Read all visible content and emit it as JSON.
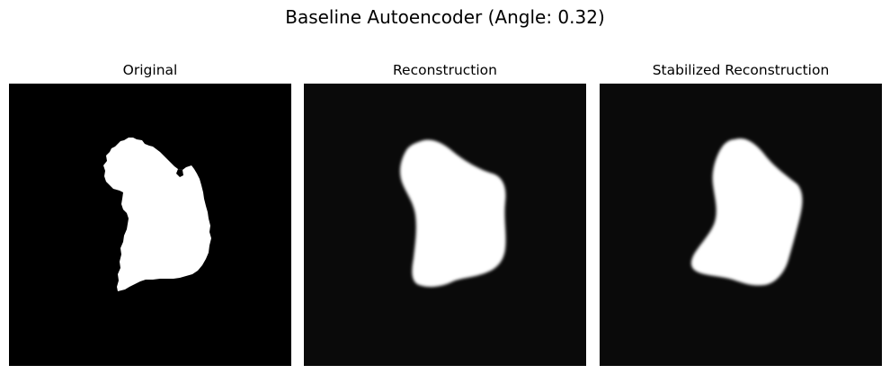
{
  "figure": {
    "title": "Baseline Autoencoder (Angle: 0.32)"
  },
  "panels": [
    {
      "title": "Original",
      "background": "#000000",
      "shape_color": "#ffffff",
      "edge": "jagged"
    },
    {
      "title": "Reconstruction",
      "background": "#0a0a0a",
      "shape_color": "#ffffff",
      "edge": "blurred"
    },
    {
      "title": "Stabilized Reconstruction",
      "background": "#0a0a0a",
      "shape_color": "#ffffff",
      "edge": "blurred"
    }
  ]
}
